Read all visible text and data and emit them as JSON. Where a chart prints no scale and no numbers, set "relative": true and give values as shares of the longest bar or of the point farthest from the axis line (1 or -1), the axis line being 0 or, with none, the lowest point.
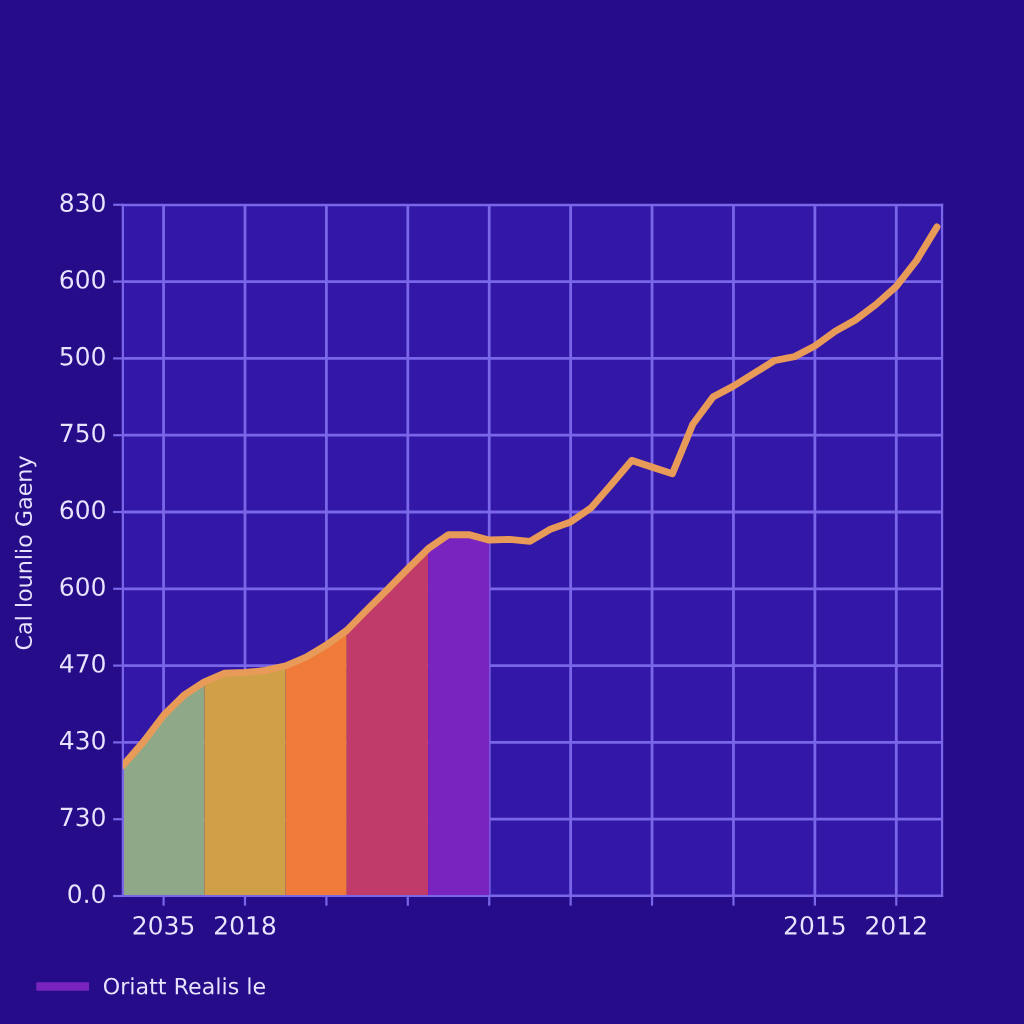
{
  "chart_data": {
    "type": "line",
    "ylabel": "Cal lounlio Gaeny",
    "relative": true,
    "categories": [
      null,
      null,
      "2035",
      null,
      null,
      null,
      "2018",
      null,
      null,
      null,
      null,
      null,
      null,
      null,
      null,
      null,
      null,
      null,
      null,
      null,
      null,
      null,
      null,
      null,
      null,
      null,
      null,
      null,
      null,
      null,
      null,
      null,
      null,
      null,
      "2015",
      null,
      null,
      null,
      "2012",
      null,
      null
    ],
    "annotations": [
      "830",
      "600",
      "500",
      "750",
      "600",
      "600",
      "470",
      "430",
      "730",
      "0.0"
    ],
    "grid": true,
    "legend": "bottom left",
    "series": [
      {
        "type": "area",
        "color": "#8fa888",
        "values": [
          0.195,
          0.23,
          0.27,
          0.3,
          0.32,
          null,
          null,
          null,
          null,
          null,
          null,
          null,
          null,
          null,
          null,
          null,
          null,
          null,
          null,
          null,
          null,
          null,
          null,
          null,
          null,
          null,
          null,
          null,
          null,
          null,
          null,
          null,
          null,
          null,
          null,
          null,
          null,
          null,
          null,
          null,
          null
        ]
      },
      {
        "type": "area",
        "color": "#cfa048",
        "values": [
          null,
          null,
          null,
          null,
          0.32,
          0.333,
          0.334,
          0.337,
          0.344,
          null,
          null,
          null,
          null,
          null,
          null,
          null,
          null,
          null,
          null,
          null,
          null,
          null,
          null,
          null,
          null,
          null,
          null,
          null,
          null,
          null,
          null,
          null,
          null,
          null,
          null,
          null,
          null,
          null,
          null,
          null,
          null
        ]
      },
      {
        "type": "area",
        "color": "#ef7a3a",
        "values": [
          null,
          null,
          null,
          null,
          null,
          null,
          null,
          null,
          0.344,
          0.357,
          0.375,
          0.397,
          null,
          null,
          null,
          null,
          null,
          null,
          null,
          null,
          null,
          null,
          null,
          null,
          null,
          null,
          null,
          null,
          null,
          null,
          null,
          null,
          null,
          null,
          null,
          null,
          null,
          null,
          null,
          null,
          null
        ]
      },
      {
        "type": "area",
        "color": "#c03a6a",
        "values": [
          null,
          null,
          null,
          null,
          null,
          null,
          null,
          null,
          null,
          null,
          null,
          0.397,
          0.428,
          0.458,
          0.489,
          0.519,
          null,
          null,
          null,
          null,
          null,
          null,
          null,
          null,
          null,
          null,
          null,
          null,
          null,
          null,
          null,
          null,
          null,
          null,
          null,
          null,
          null,
          null,
          null,
          null,
          null
        ]
      },
      {
        "type": "area",
        "name": "Oriatt Realis le",
        "color": "#7a24c0",
        "values": [
          null,
          null,
          null,
          null,
          null,
          null,
          null,
          null,
          null,
          null,
          null,
          null,
          null,
          null,
          null,
          0.519,
          0.54,
          0.54,
          0.532,
          null,
          null,
          null,
          null,
          null,
          null,
          null,
          null,
          null,
          null,
          null,
          null,
          null,
          null,
          null,
          null,
          null,
          null,
          null,
          null,
          null,
          null
        ]
      },
      {
        "color": "#e89a58",
        "values": [
          0.195,
          0.23,
          0.27,
          0.3,
          0.32,
          0.333,
          0.334,
          0.337,
          0.344,
          0.357,
          0.375,
          0.397,
          0.428,
          0.458,
          0.489,
          0.519,
          0.54,
          0.54,
          0.532,
          0.533,
          0.53,
          0.548,
          0.559,
          0.58,
          0.615,
          0.651,
          0.641,
          0.631,
          0.705,
          0.746,
          0.762,
          0.781,
          0.8,
          0.806,
          0.822,
          0.844,
          0.861,
          0.884,
          0.911,
          0.95,
          1.0
        ]
      }
    ]
  }
}
